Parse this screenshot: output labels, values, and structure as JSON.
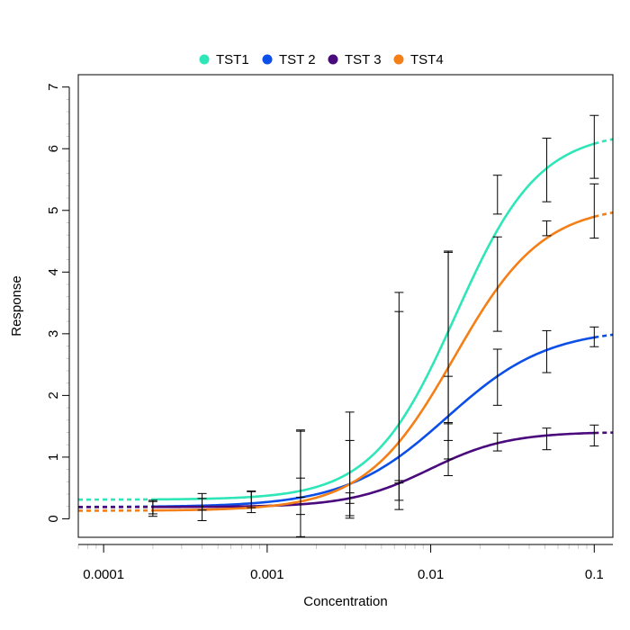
{
  "chart_data": {
    "type": "line",
    "x_scale": "log",
    "xlabel": "Concentration",
    "ylabel": "Response",
    "xlim": [
      7e-05,
      0.13
    ],
    "ylim": [
      -0.3,
      7.2
    ],
    "x_ticks": [
      {
        "value": 0.0001,
        "label": "0.0001"
      },
      {
        "value": 0.001,
        "label": "0.001"
      },
      {
        "value": 0.01,
        "label": "0.01"
      },
      {
        "value": 0.1,
        "label": "0.1"
      }
    ],
    "y_ticks": [
      {
        "value": 0,
        "label": "0"
      },
      {
        "value": 1,
        "label": "1"
      },
      {
        "value": 2,
        "label": "2"
      },
      {
        "value": 3,
        "label": "3"
      },
      {
        "value": 4,
        "label": "4"
      },
      {
        "value": 5,
        "label": "5"
      },
      {
        "value": 6,
        "label": "6"
      },
      {
        "value": 7,
        "label": "7"
      }
    ],
    "legend_position": "top",
    "series": [
      {
        "name": "TST1",
        "color": "#2ee6b8",
        "baseline": 0.31,
        "top": 6.29,
        "ec50": 0.0142,
        "hill": 1.7,
        "x_min_measured": 0.0002,
        "x_max_measured": 0.1
      },
      {
        "name": "TST 2",
        "color": "#0b4ee8",
        "baseline": 0.19,
        "top": 3.09,
        "ec50": 0.0125,
        "hill": 1.4,
        "x_min_measured": 0.0002,
        "x_max_measured": 0.1
      },
      {
        "name": "TST 3",
        "color": "#4a0a7d",
        "baseline": 0.19,
        "top": 1.41,
        "ec50": 0.0098,
        "hill": 1.8,
        "x_min_measured": 0.0002,
        "x_max_measured": 0.1
      },
      {
        "name": "TST4",
        "color": "#f57f17",
        "baseline": 0.13,
        "top": 5.1,
        "ec50": 0.0139,
        "hill": 1.6,
        "x_min_measured": 0.0002,
        "x_max_measured": 0.1
      }
    ],
    "error_bars": [
      {
        "x": 0.0002,
        "lower": 0.08,
        "upper": 0.28
      },
      {
        "x": 0.0002,
        "lower": 0.04,
        "upper": 0.3
      },
      {
        "x": 0.0004,
        "lower": 0.14,
        "upper": 0.33
      },
      {
        "x": 0.0004,
        "lower": -0.03,
        "upper": 0.41
      },
      {
        "x": 0.0008,
        "lower": 0.18,
        "upper": 0.45
      },
      {
        "x": 0.0008,
        "lower": 0.1,
        "upper": 0.44
      },
      {
        "x": 0.0016,
        "lower": 0.35,
        "upper": 0.66
      },
      {
        "x": 0.0016,
        "lower": -0.29,
        "upper": 1.44
      },
      {
        "x": 0.0016,
        "lower": 0.07,
        "upper": 1.42
      },
      {
        "x": 0.0032,
        "lower": 0.25,
        "upper": 1.27
      },
      {
        "x": 0.0032,
        "lower": 0.05,
        "upper": 1.73
      },
      {
        "x": 0.0032,
        "lower": 0.01,
        "upper": 0.42
      },
      {
        "x": 0.0064,
        "lower": 0.3,
        "upper": 3.67
      },
      {
        "x": 0.0064,
        "lower": 0.15,
        "upper": 3.36
      },
      {
        "x": 0.0064,
        "lower": 0.58,
        "upper": 0.62
      },
      {
        "x": 0.0128,
        "lower": 0.97,
        "upper": 4.32
      },
      {
        "x": 0.0128,
        "lower": 1.27,
        "upper": 4.34
      },
      {
        "x": 0.0128,
        "lower": 0.7,
        "upper": 2.31
      },
      {
        "x": 0.0128,
        "lower": 1.54,
        "upper": 1.56
      },
      {
        "x": 0.0256,
        "lower": 4.94,
        "upper": 5.57
      },
      {
        "x": 0.0256,
        "lower": 3.04,
        "upper": 4.57
      },
      {
        "x": 0.0256,
        "lower": 1.84,
        "upper": 2.75
      },
      {
        "x": 0.0256,
        "lower": 1.1,
        "upper": 1.39
      },
      {
        "x": 0.0512,
        "lower": 5.14,
        "upper": 6.17
      },
      {
        "x": 0.0512,
        "lower": 4.59,
        "upper": 4.83
      },
      {
        "x": 0.0512,
        "lower": 2.37,
        "upper": 3.05
      },
      {
        "x": 0.0512,
        "lower": 1.12,
        "upper": 1.47
      },
      {
        "x": 0.1,
        "lower": 5.52,
        "upper": 6.54
      },
      {
        "x": 0.1,
        "lower": 4.55,
        "upper": 5.43
      },
      {
        "x": 0.1,
        "lower": 2.79,
        "upper": 3.11
      },
      {
        "x": 0.1,
        "lower": 1.18,
        "upper": 1.52
      }
    ]
  }
}
